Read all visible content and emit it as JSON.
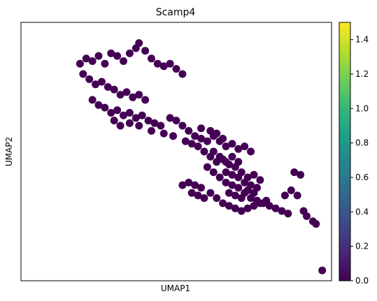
{
  "chart_data": {
    "type": "scatter",
    "title": "Scamp4",
    "xlabel": "UMAP1",
    "ylabel": "UMAP2",
    "xlim": [
      0,
      100
    ],
    "ylim": [
      0,
      100
    ],
    "x_ticks_shown": false,
    "y_ticks_shown": false,
    "grid": false,
    "point_color": "#440154",
    "colorbar": {
      "colormap": "viridis",
      "range": [
        0,
        1.5
      ],
      "ticks": [
        "0.0",
        "0.2",
        "0.4",
        "0.6",
        "0.8",
        "1.0",
        "1.2",
        "1.4"
      ],
      "tick_values": [
        0.0,
        0.2,
        0.4,
        0.6,
        0.8,
        1.0,
        1.2,
        1.4
      ],
      "colors": [
        "#440154",
        "#482878",
        "#3e4a89",
        "#31688e",
        "#26828e",
        "#1f9e89",
        "#35b779",
        "#6ece58",
        "#b5de2b",
        "#fde725"
      ]
    },
    "points": [
      [
        19.0,
        84.0
      ],
      [
        21.0,
        86.0
      ],
      [
        23.0,
        85.0
      ],
      [
        25.0,
        87.0
      ],
      [
        27.0,
        84.0
      ],
      [
        29.0,
        88.0
      ],
      [
        31.0,
        87.0
      ],
      [
        33.0,
        85.0
      ],
      [
        35.0,
        88.0
      ],
      [
        37.0,
        90.0
      ],
      [
        38.0,
        92.0
      ],
      [
        40.0,
        89.0
      ],
      [
        42.0,
        86.0
      ],
      [
        44.0,
        84.0
      ],
      [
        46.0,
        83.0
      ],
      [
        48.0,
        84.0
      ],
      [
        50.0,
        82.0
      ],
      [
        52.0,
        80.0
      ],
      [
        20.0,
        80.0
      ],
      [
        22.0,
        78.0
      ],
      [
        24.0,
        76.0
      ],
      [
        26.0,
        77.0
      ],
      [
        28.0,
        75.0
      ],
      [
        30.0,
        74.0
      ],
      [
        32.0,
        72.0
      ],
      [
        34.0,
        73.0
      ],
      [
        36.0,
        71.0
      ],
      [
        38.0,
        72.0
      ],
      [
        40.0,
        70.0
      ],
      [
        23.0,
        70.0
      ],
      [
        25.0,
        68.0
      ],
      [
        27.0,
        67.0
      ],
      [
        29.0,
        65.0
      ],
      [
        31.0,
        66.0
      ],
      [
        33.0,
        64.0
      ],
      [
        35.0,
        65.0
      ],
      [
        37.0,
        63.0
      ],
      [
        39.0,
        64.0
      ],
      [
        41.0,
        62.0
      ],
      [
        43.0,
        61.0
      ],
      [
        45.0,
        60.0
      ],
      [
        48.0,
        63.0
      ],
      [
        50.0,
        62.0
      ],
      [
        52.0,
        60.0
      ],
      [
        54.0,
        58.0
      ],
      [
        56.0,
        56.0
      ],
      [
        58.0,
        55.0
      ],
      [
        60.0,
        54.0
      ],
      [
        62.0,
        56.0
      ],
      [
        64.0,
        54.0
      ],
      [
        66.0,
        52.0
      ],
      [
        68.0,
        53.0
      ],
      [
        70.0,
        51.0
      ],
      [
        72.0,
        52.0
      ],
      [
        74.0,
        50.0
      ],
      [
        57.0,
        52.0
      ],
      [
        59.0,
        50.0
      ],
      [
        61.0,
        48.0
      ],
      [
        63.0,
        46.0
      ],
      [
        65.0,
        47.0
      ],
      [
        67.0,
        45.0
      ],
      [
        69.0,
        44.0
      ],
      [
        71.0,
        42.0
      ],
      [
        73.0,
        40.0
      ],
      [
        75.0,
        41.0
      ],
      [
        77.0,
        39.0
      ],
      [
        60.0,
        44.0
      ],
      [
        62.0,
        42.0
      ],
      [
        64.0,
        40.0
      ],
      [
        66.0,
        38.0
      ],
      [
        68.0,
        37.0
      ],
      [
        70.0,
        36.0
      ],
      [
        72.0,
        34.0
      ],
      [
        74.0,
        32.0
      ],
      [
        76.0,
        31.0
      ],
      [
        78.0,
        30.0
      ],
      [
        80.0,
        29.0
      ],
      [
        82.0,
        28.0
      ],
      [
        84.0,
        27.0
      ],
      [
        86.0,
        26.0
      ],
      [
        61.0,
        34.0
      ],
      [
        63.0,
        32.0
      ],
      [
        65.0,
        30.0
      ],
      [
        67.0,
        29.0
      ],
      [
        69.0,
        28.0
      ],
      [
        71.0,
        27.0
      ],
      [
        73.0,
        28.0
      ],
      [
        75.0,
        29.0
      ],
      [
        77.0,
        30.0
      ],
      [
        79.0,
        31.0
      ],
      [
        52.0,
        37.0
      ],
      [
        54.0,
        38.0
      ],
      [
        56.0,
        37.0
      ],
      [
        58.0,
        36.0
      ],
      [
        88.0,
        42.0
      ],
      [
        90.0,
        41.0
      ],
      [
        91.0,
        27.0
      ],
      [
        92.0,
        25.0
      ],
      [
        94.0,
        23.0
      ],
      [
        95.0,
        22.0
      ],
      [
        97.0,
        4.0
      ],
      [
        30.0,
        62.0
      ],
      [
        32.0,
        60.0
      ],
      [
        35.0,
        61.0
      ],
      [
        38.0,
        60.0
      ],
      [
        42.0,
        58.0
      ],
      [
        46.0,
        57.0
      ],
      [
        49.0,
        56.0
      ],
      [
        53.0,
        54.0
      ],
      [
        55.0,
        53.0
      ],
      [
        58.0,
        59.0
      ],
      [
        61.0,
        58.0
      ],
      [
        63.0,
        57.0
      ],
      [
        65.0,
        55.0
      ],
      [
        62.0,
        50.0
      ],
      [
        64.0,
        48.0
      ],
      [
        66.0,
        46.0
      ],
      [
        68.0,
        48.0
      ],
      [
        70.0,
        46.0
      ],
      [
        66.0,
        42.0
      ],
      [
        68.0,
        41.0
      ],
      [
        70.0,
        40.0
      ],
      [
        72.0,
        38.0
      ],
      [
        74.0,
        37.0
      ],
      [
        76.0,
        36.0
      ],
      [
        67.0,
        34.0
      ],
      [
        69.0,
        33.0
      ],
      [
        71.0,
        32.0
      ],
      [
        73.0,
        35.0
      ],
      [
        75.0,
        34.0
      ],
      [
        55.0,
        34.0
      ],
      [
        57.0,
        33.0
      ],
      [
        59.0,
        32.0
      ],
      [
        85.0,
        33.0
      ],
      [
        87.0,
        35.0
      ],
      [
        89.0,
        33.0
      ]
    ]
  }
}
